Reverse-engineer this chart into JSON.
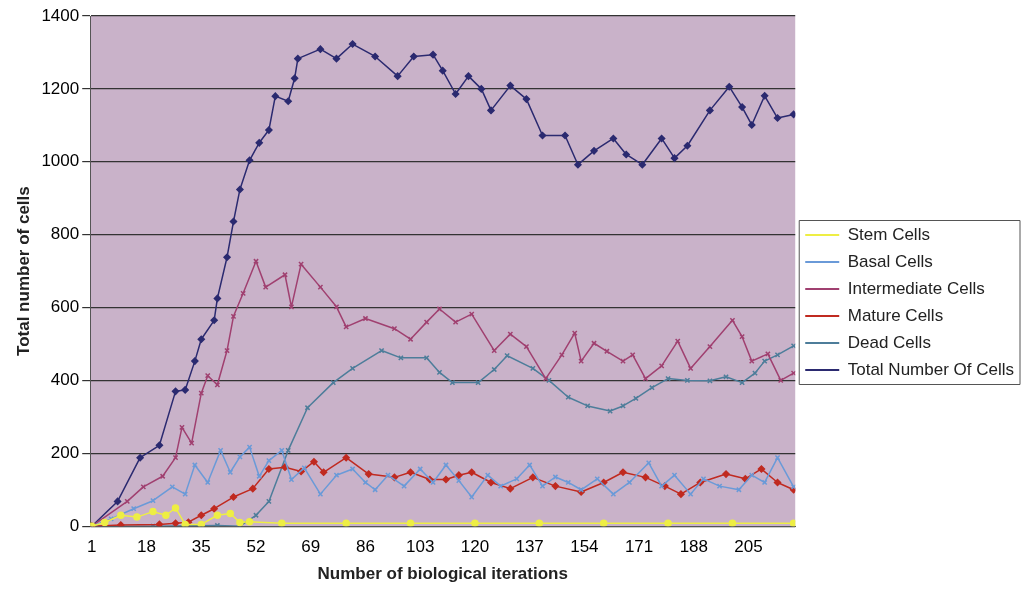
{
  "chart_data": {
    "type": "line",
    "xlabel": "Number of biological iterations",
    "ylabel": "Total number of cells",
    "xlim": [
      0.5,
      219.5
    ],
    "xticks": [
      1,
      18,
      35,
      52,
      69,
      86,
      103,
      120,
      137,
      154,
      171,
      188,
      205
    ],
    "ylim": [
      0,
      1400
    ],
    "yticks": [
      0,
      200,
      400,
      600,
      800,
      1000,
      1200,
      1400
    ],
    "grid": "y",
    "legend": "right",
    "line_style": "solid",
    "series": [
      {
        "name": "Stem Cells",
        "color": "#eeee44",
        "marker": "circle",
        "x": [
          1,
          5,
          10,
          15,
          20,
          24,
          27,
          30,
          35,
          40,
          44,
          47,
          50,
          60,
          80,
          100,
          120,
          140,
          160,
          180,
          200,
          219
        ],
        "values": [
          0,
          10,
          30,
          25,
          40,
          30,
          50,
          5,
          5,
          30,
          35,
          10,
          12,
          8,
          8,
          8,
          8,
          8,
          8,
          8,
          8,
          8
        ]
      },
      {
        "name": "Basal Cells",
        "color": "#6a9ad8",
        "marker": "cross",
        "x": [
          1,
          7,
          14,
          20,
          26,
          30,
          33,
          37,
          41,
          44,
          47,
          50,
          53,
          56,
          60,
          63,
          67,
          72,
          77,
          82,
          86,
          89,
          93,
          98,
          103,
          107,
          111,
          115,
          119,
          124,
          128,
          133,
          137,
          141,
          145,
          149,
          153,
          158,
          163,
          168,
          174,
          178,
          182,
          187,
          191,
          196,
          202,
          206,
          210,
          214,
          219
        ],
        "values": [
          0,
          20,
          48,
          70,
          108,
          88,
          168,
          120,
          208,
          148,
          190,
          217,
          137,
          180,
          208,
          128,
          160,
          88,
          140,
          157,
          120,
          100,
          140,
          110,
          157,
          120,
          168,
          125,
          80,
          140,
          110,
          130,
          168,
          110,
          135,
          120,
          100,
          130,
          88,
          120,
          174,
          110,
          140,
          88,
          130,
          110,
          100,
          140,
          120,
          188,
          108
        ]
      },
      {
        "name": "Intermediate Cells",
        "color": "#a04070",
        "marker": "cross",
        "x": [
          1,
          12,
          17,
          23,
          27,
          29,
          32,
          35,
          37,
          40,
          43,
          45,
          48,
          52,
          55,
          61,
          63,
          66,
          72,
          77,
          80,
          86,
          95,
          100,
          105,
          109,
          114,
          119,
          126,
          131,
          136,
          142,
          147,
          151,
          153,
          157,
          161,
          166,
          169,
          173,
          178,
          183,
          187,
          193,
          200,
          203,
          206,
          211,
          215,
          219
        ],
        "values": [
          0,
          68,
          108,
          137,
          188,
          271,
          228,
          365,
          413,
          388,
          482,
          576,
          639,
          727,
          656,
          690,
          602,
          719,
          656,
          602,
          547,
          570,
          542,
          513,
          560,
          596,
          560,
          582,
          482,
          527,
          493,
          405,
          470,
          530,
          453,
          502,
          480,
          453,
          470,
          405,
          440,
          508,
          433,
          493,
          565,
          520,
          453,
          473,
          400,
          420
        ]
      },
      {
        "name": "Mature Cells",
        "color": "#c02a20",
        "marker": "diamond",
        "x": [
          1,
          10,
          22,
          27,
          31,
          35,
          39,
          45,
          51,
          56,
          61,
          66,
          70,
          73,
          80,
          87,
          95,
          100,
          106,
          111,
          115,
          119,
          125,
          131,
          138,
          145,
          153,
          160,
          166,
          173,
          179,
          184,
          190,
          198,
          204,
          209,
          214,
          219
        ],
        "values": [
          0,
          3,
          5,
          8,
          11,
          30,
          48,
          80,
          103,
          157,
          162,
          150,
          177,
          148,
          188,
          143,
          134,
          148,
          128,
          128,
          140,
          148,
          120,
          103,
          134,
          110,
          94,
          120,
          148,
          134,
          110,
          88,
          120,
          143,
          130,
          157,
          120,
          100
        ]
      },
      {
        "name": "Dead Cells",
        "color": "#4d7d9a",
        "marker": "cross",
        "x": [
          1,
          20,
          40,
          47,
          52,
          56,
          62,
          68,
          76,
          82,
          91,
          97,
          105,
          109,
          113,
          121,
          126,
          130,
          138,
          143,
          149,
          155,
          162,
          166,
          170,
          175,
          180,
          186,
          193,
          198,
          203,
          207,
          210,
          214,
          219
        ],
        "values": [
          0,
          0,
          2,
          0,
          30,
          68,
          208,
          325,
          394,
          433,
          482,
          462,
          462,
          422,
          394,
          394,
          430,
          468,
          433,
          400,
          354,
          330,
          316,
          330,
          351,
          380,
          405,
          400,
          399,
          410,
          394,
          420,
          453,
          470,
          495
        ]
      },
      {
        "name": "Total Number Of Cells",
        "color": "#2b2a70",
        "marker": "diamond",
        "x": [
          1,
          9,
          16,
          22,
          27,
          30,
          33,
          35,
          39,
          40,
          43,
          45,
          47,
          50,
          53,
          56,
          58,
          62,
          64,
          65,
          72,
          77,
          82,
          89,
          96,
          101,
          107,
          110,
          114,
          118,
          122,
          125,
          131,
          136,
          141,
          148,
          152,
          157,
          163,
          167,
          172,
          178,
          182,
          186,
          193,
          199,
          203,
          206,
          210,
          214,
          219
        ],
        "values": [
          0,
          68,
          188,
          222,
          370,
          374,
          453,
          513,
          565,
          625,
          738,
          836,
          924,
          1004,
          1052,
          1087,
          1180,
          1166,
          1229,
          1283,
          1309,
          1283,
          1323,
          1289,
          1235,
          1289,
          1294,
          1250,
          1186,
          1235,
          1200,
          1141,
          1209,
          1172,
          1072,
          1072,
          992,
          1030,
          1064,
          1020,
          992,
          1064,
          1010,
          1044,
          1141,
          1206,
          1150,
          1101,
          1181,
          1120,
          1130
        ]
      }
    ]
  }
}
